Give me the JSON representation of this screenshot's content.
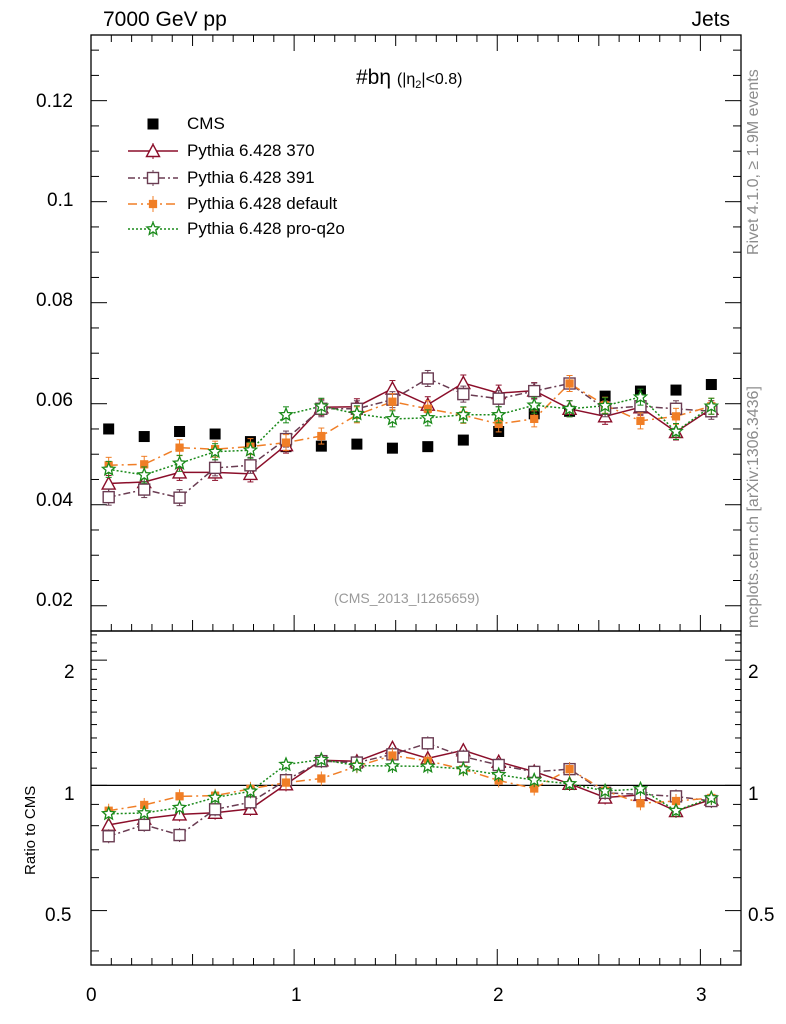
{
  "header": {
    "left": "7000 GeV pp",
    "right": "Jets"
  },
  "side_text": {
    "top": "Rivet 4.1.0, ≥ 1.9M events",
    "bottom": "mcplots.cern.ch [arXiv:1306.3436]"
  },
  "chart_data": {
    "type": "scatter",
    "title_main": "#bη",
    "title_sub": "(|η",
    "title_sub_index": "2",
    "title_sub_end": "|<0.8)",
    "analysis_id": "(CMS_2013_I1265659)",
    "xlim": [
      0,
      3.2
    ],
    "ylim": [
      0.015,
      0.133
    ],
    "ratio_ylim": [
      0.37,
      2.35
    ],
    "ylabel_ratio": "Ratio to CMS",
    "x_ticks": [
      0,
      1,
      2,
      3
    ],
    "x_tick_labels": [
      "0",
      "1",
      "2",
      "3"
    ],
    "y_ticks": [
      0.02,
      0.04,
      0.06,
      0.08,
      0.1,
      0.12
    ],
    "y_tick_labels": [
      "0.02",
      "0.04",
      "0.06",
      "0.08",
      "0.1",
      "0.12"
    ],
    "ratio_ticks": [
      0.5,
      1,
      2
    ],
    "ratio_tick_labels": [
      "0.5",
      "1",
      "2"
    ],
    "x": [
      0.087,
      0.262,
      0.436,
      0.611,
      0.785,
      0.96,
      1.134,
      1.309,
      1.484,
      1.658,
      1.833,
      2.007,
      2.182,
      2.356,
      2.531,
      2.705,
      2.88,
      3.054
    ],
    "series": [
      {
        "name": "CMS",
        "color": "#000000",
        "marker": "square-filled",
        "values": [
          0.055,
          0.0535,
          0.0545,
          0.054,
          0.0525,
          0.0515,
          0.0516,
          0.052,
          0.0512,
          0.0515,
          0.0528,
          0.0545,
          0.058,
          0.0585,
          0.0615,
          0.0625,
          0.0627,
          0.0638
        ]
      },
      {
        "name": "Pythia 6.428 370",
        "color": "#8b0e2a",
        "marker": "triangle-open",
        "dash": "solid",
        "values": [
          0.0442,
          0.0445,
          0.0464,
          0.0464,
          0.0461,
          0.0518,
          0.0593,
          0.0594,
          0.063,
          0.0598,
          0.0641,
          0.0621,
          0.0626,
          0.059,
          0.0575,
          0.0593,
          0.0544,
          0.059
        ]
      },
      {
        "name": "Pythia 6.428 391",
        "color": "#6a3c52",
        "marker": "square-open",
        "dash": "dashdot",
        "values": [
          0.0415,
          0.043,
          0.0414,
          0.0473,
          0.0478,
          0.053,
          0.059,
          0.059,
          0.0608,
          0.065,
          0.0619,
          0.061,
          0.0625,
          0.064,
          0.059,
          0.0595,
          0.059,
          0.0585
        ]
      },
      {
        "name": "Pythia 6.428 default",
        "color": "#f07e26",
        "marker": "square-filled-small",
        "dash": "dashdotlong",
        "values": [
          0.0478,
          0.048,
          0.0513,
          0.051,
          0.0515,
          0.0523,
          0.0536,
          0.0578,
          0.0604,
          0.059,
          0.0577,
          0.056,
          0.057,
          0.064,
          0.0597,
          0.0566,
          0.0575,
          0.0595
        ]
      },
      {
        "name": "Pythia 6.428 pro-q2o",
        "color": "#1a8a1a",
        "marker": "star-open",
        "dash": "dotted",
        "values": [
          0.047,
          0.0459,
          0.0482,
          0.0505,
          0.0508,
          0.0578,
          0.0595,
          0.058,
          0.057,
          0.0572,
          0.0578,
          0.0578,
          0.0597,
          0.059,
          0.0596,
          0.0613,
          0.0545,
          0.0595
        ]
      }
    ]
  }
}
